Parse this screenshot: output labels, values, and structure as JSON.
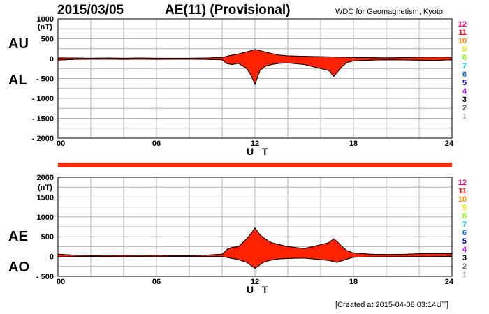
{
  "header": {
    "date": "2015/03/05",
    "title": "AE(11) (Provisional)",
    "credit": "WDC for Geomagnetism, Kyoto",
    "created": "[Created at 2015-04-08 03:14UT]"
  },
  "colors": {
    "fill": "#ff2200",
    "outline": "#000000",
    "separator": "#ff2a0a",
    "grid": "#b4b4b4"
  },
  "chart_data": [
    {
      "type": "area",
      "panel": "AU/AL",
      "labels": [
        "AU",
        "AL"
      ],
      "unit": "(nT)",
      "xlabel": "U T",
      "xticks": [
        "00",
        "06",
        "12",
        "18",
        "24"
      ],
      "xlim": [
        0,
        24
      ],
      "ylim": [
        -2000,
        1000
      ],
      "yticks": [
        "1000",
        "500",
        "0",
        "- 500",
        "- 1000",
        "- 1500",
        "- 2000"
      ],
      "grid": true,
      "levels": [
        "12",
        "11",
        "10",
        "9",
        "8",
        "7",
        "6",
        "5",
        "4",
        "3",
        "2",
        "1"
      ],
      "level_colors": [
        "#ff0080",
        "#ff0000",
        "#ff8c00",
        "#e6e600",
        "#80ff00",
        "#00c8ff",
        "#0064ff",
        "#0000c8",
        "#c800ff",
        "#000000",
        "#606060",
        "#b4b4b4"
      ],
      "series": [
        {
          "name": "AU",
          "x": [
            0,
            1,
            2,
            3,
            4,
            5,
            6,
            7,
            8,
            9,
            10,
            10.5,
            11,
            11.5,
            12,
            12.5,
            13,
            13.5,
            14,
            15,
            16,
            16.5,
            17,
            17.5,
            18,
            19,
            20,
            21,
            22,
            23,
            24
          ],
          "values": [
            20,
            15,
            10,
            15,
            10,
            15,
            10,
            10,
            10,
            15,
            30,
            80,
            120,
            170,
            230,
            180,
            130,
            90,
            70,
            60,
            50,
            45,
            40,
            35,
            30,
            25,
            20,
            25,
            35,
            40,
            40
          ]
        },
        {
          "name": "AL",
          "x": [
            0,
            1,
            2,
            3,
            4,
            5,
            6,
            7,
            8,
            9,
            10,
            10.3,
            10.6,
            11,
            11.5,
            11.8,
            12,
            12.3,
            12.6,
            13,
            13.5,
            14,
            15,
            16,
            16.5,
            16.8,
            17,
            17.3,
            17.6,
            18,
            19,
            20,
            21,
            22,
            23,
            24
          ],
          "values": [
            -40,
            -20,
            -15,
            -15,
            -20,
            -15,
            -20,
            -15,
            -15,
            -20,
            -30,
            -130,
            -150,
            -120,
            -250,
            -450,
            -650,
            -300,
            -200,
            -150,
            -120,
            -110,
            -150,
            -250,
            -300,
            -450,
            -350,
            -200,
            -100,
            -60,
            -40,
            -30,
            -35,
            -40,
            -45,
            -30
          ]
        }
      ]
    },
    {
      "type": "area",
      "panel": "AE/AO",
      "labels": [
        "AE",
        "AO"
      ],
      "unit": "(nT)",
      "xlabel": "U T",
      "xticks": [
        "00",
        "06",
        "12",
        "18",
        "24"
      ],
      "xlim": [
        0,
        24
      ],
      "ylim": [
        -500,
        2000
      ],
      "yticks": [
        "2000",
        "1500",
        "1000",
        "500",
        "0",
        "- 500"
      ],
      "grid": true,
      "levels": [
        "12",
        "11",
        "10",
        "9",
        "8",
        "7",
        "6",
        "5",
        "4",
        "3",
        "2",
        "1"
      ],
      "level_colors": [
        "#ff0080",
        "#ff0000",
        "#ff8c00",
        "#e6e600",
        "#80ff00",
        "#00c8ff",
        "#0064ff",
        "#0000c8",
        "#c800ff",
        "#000000",
        "#606060",
        "#b4b4b4"
      ],
      "series": [
        {
          "name": "AE",
          "x": [
            0,
            1,
            2,
            3,
            4,
            5,
            6,
            7,
            8,
            9,
            10,
            10.3,
            10.6,
            11,
            11.5,
            11.8,
            12,
            12.3,
            12.6,
            13,
            13.5,
            14,
            15,
            16,
            16.5,
            16.8,
            17,
            17.3,
            17.6,
            18,
            19,
            20,
            21,
            22,
            23,
            24
          ],
          "values": [
            60,
            35,
            25,
            30,
            30,
            30,
            30,
            25,
            25,
            35,
            60,
            180,
            230,
            250,
            450,
            600,
            720,
            550,
            450,
            350,
            300,
            250,
            200,
            300,
            350,
            450,
            380,
            250,
            150,
            90,
            60,
            50,
            55,
            70,
            80,
            70
          ]
        },
        {
          "name": "AO",
          "x": [
            0,
            1,
            2,
            3,
            4,
            5,
            6,
            7,
            8,
            9,
            10,
            10.5,
            11,
            11.5,
            12,
            12.5,
            13,
            13.5,
            14,
            15,
            16,
            16.5,
            17,
            17.5,
            18,
            19,
            20,
            21,
            22,
            23,
            24
          ],
          "values": [
            -10,
            -2,
            -2,
            0,
            -5,
            0,
            -5,
            -2,
            -2,
            -2,
            0,
            -40,
            -80,
            -150,
            -300,
            -150,
            -90,
            -60,
            -50,
            -40,
            -80,
            -100,
            -150,
            -80,
            -20,
            -10,
            -5,
            -5,
            -3,
            -3,
            5
          ]
        }
      ]
    }
  ]
}
